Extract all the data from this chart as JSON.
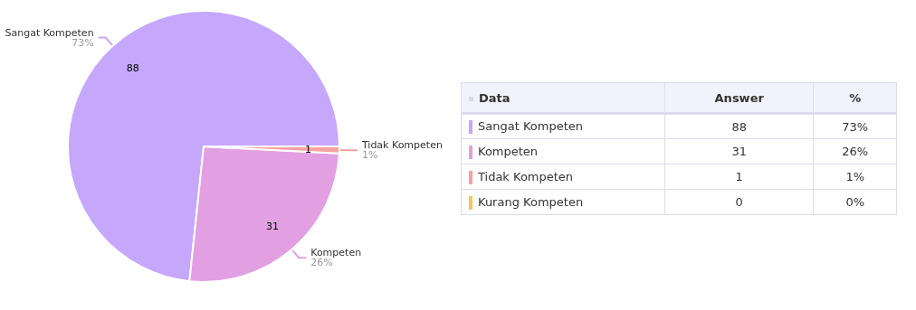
{
  "chart_data": {
    "type": "pie",
    "categories": [
      "Sangat Kompeten",
      "Kompeten",
      "Tidak Kompeten",
      "Kurang Kompeten"
    ],
    "values": [
      88,
      31,
      1,
      0
    ],
    "colors": [
      "#c5a8fb",
      "#e2a0e2",
      "#f9a19f",
      "#fdc35a"
    ],
    "data_labels": true,
    "value_labels": [
      "88",
      "31",
      "1",
      "0"
    ],
    "legend": "right",
    "annotations": [
      "Data",
      "Answer",
      "%",
      {
        "text": "73%",
        "x": "Sangat Kompeten"
      },
      {
        "text": "26%",
        "x": "Kompeten"
      },
      {
        "text": "1%",
        "x": "Tidak Kompeten"
      },
      {
        "text": "0%",
        "x": "Kurang Kompeten"
      }
    ]
  }
}
